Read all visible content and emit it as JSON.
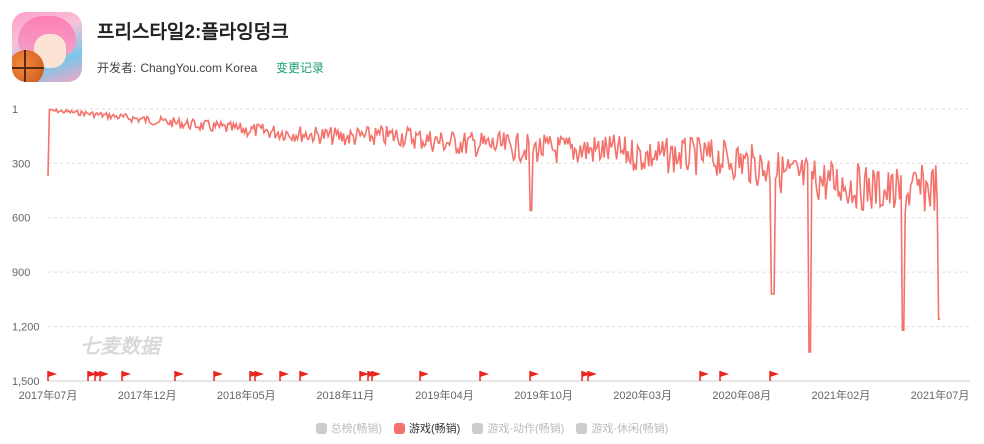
{
  "app": {
    "title": "프리스타일2:플라잉덩크",
    "developer_label": "开发者:",
    "developer": "ChangYou.com Korea",
    "changelog_link": "变更记录"
  },
  "watermark": "七麦数据",
  "colors": {
    "series": "#f4726b",
    "flag": "#e8261f",
    "legend_inactive": "#cccccc",
    "link": "#1a9e77"
  },
  "chart_data": {
    "type": "line",
    "yaxis": {
      "reversed": true,
      "ylim": [
        1,
        1500
      ],
      "ticks": [
        "1",
        "300",
        "600",
        "900",
        "1,200",
        "1,500"
      ]
    },
    "xaxis": {
      "ticks": [
        "2017年07月",
        "2017年12月",
        "2018年05月",
        "2018年11月",
        "2019年04月",
        "2019年10月",
        "2020年03月",
        "2020年08月",
        "2021年02月",
        "2021年07月"
      ]
    },
    "grid": true,
    "flags_count": 22,
    "legend": [
      {
        "name": "总榜(畅销)",
        "active": false
      },
      {
        "name": "游戏(畅销)",
        "active": true
      },
      {
        "name": "游戏-动作(畅销)",
        "active": false
      },
      {
        "name": "游戏-休闲(畅销)",
        "active": false
      }
    ],
    "series": [
      {
        "name": "游戏(畅销)",
        "approximate_rank_trend": [
          [
            "2017-07",
            5
          ],
          [
            "2017-09",
            20
          ],
          [
            "2017-12",
            50
          ],
          [
            "2018-03",
            80
          ],
          [
            "2018-05",
            100
          ],
          [
            "2018-08",
            120
          ],
          [
            "2018-11",
            140
          ],
          [
            "2019-02",
            130
          ],
          [
            "2019-04",
            160
          ],
          [
            "2019-07",
            180
          ],
          [
            "2019-10",
            200
          ],
          [
            "2020-01",
            200
          ],
          [
            "2020-03",
            230
          ],
          [
            "2020-06",
            230
          ],
          [
            "2020-08",
            250
          ],
          [
            "2020-11",
            330
          ],
          [
            "2021-02",
            380
          ],
          [
            "2021-05",
            430
          ],
          [
            "2021-07",
            380
          ]
        ]
      }
    ],
    "notable_drops": [
      {
        "date": "2017-07",
        "rank": 370
      },
      {
        "date": "2019-09",
        "rank": 560
      },
      {
        "date": "2020-10",
        "rank": 1020
      },
      {
        "date": "2020-12",
        "rank": 1340
      },
      {
        "date": "2021-05",
        "rank": 1220
      },
      {
        "date": "2021-07",
        "rank": 1160
      }
    ]
  }
}
